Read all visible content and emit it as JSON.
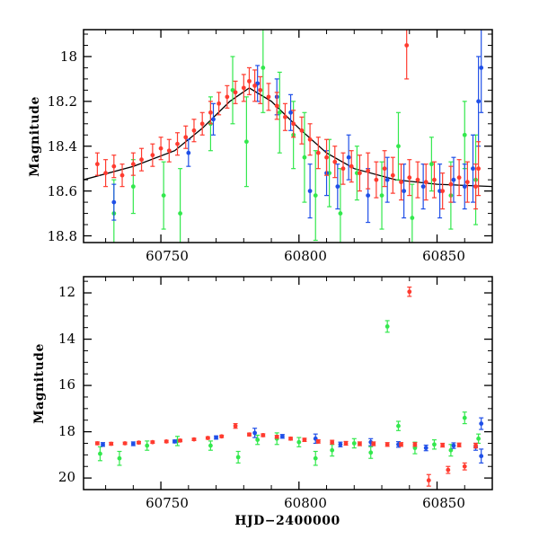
{
  "colors": {
    "red": "#ff3b2f",
    "green": "#33e84d",
    "blue": "#1f4fe8",
    "fit": "#000000"
  },
  "chart_data": [
    {
      "type": "scatter",
      "panel": "top",
      "xlabel": "",
      "ylabel": "Magnitude",
      "xlim": [
        60722,
        60870
      ],
      "ylim": [
        18.83,
        17.88
      ],
      "y_inverted": true,
      "x_ticks": [
        60750,
        60800,
        60850
      ],
      "x_tick_labels": [
        "60750",
        "60800",
        "60850"
      ],
      "y_ticks": [
        18.0,
        18.2,
        18.4,
        18.6,
        18.8
      ],
      "y_tick_labels": [
        "18",
        "18.2",
        "18.4",
        "18.6",
        "18.8"
      ],
      "fit_curve": {
        "x": [
          60722,
          60740,
          60755,
          60765,
          60775,
          60782,
          60790,
          60800,
          60810,
          60820,
          60835,
          60850,
          60870
        ],
        "y": [
          18.55,
          18.49,
          18.42,
          18.32,
          18.2,
          18.14,
          18.2,
          18.32,
          18.43,
          18.5,
          18.55,
          18.57,
          18.58
        ]
      },
      "series": [
        {
          "color": "red",
          "points": [
            [
              60727,
              18.48,
              0.05
            ],
            [
              60730,
              18.52,
              0.06
            ],
            [
              60733,
              18.49,
              0.05
            ],
            [
              60736,
              18.53,
              0.05
            ],
            [
              60740,
              18.48,
              0.05
            ],
            [
              60743,
              18.46,
              0.05
            ],
            [
              60747,
              18.44,
              0.05
            ],
            [
              60750,
              18.41,
              0.05
            ],
            [
              60753,
              18.42,
              0.05
            ],
            [
              60756,
              18.39,
              0.05
            ],
            [
              60759,
              18.36,
              0.05
            ],
            [
              60762,
              18.33,
              0.05
            ],
            [
              60765,
              18.3,
              0.05
            ],
            [
              60768,
              18.25,
              0.05
            ],
            [
              60771,
              18.21,
              0.05
            ],
            [
              60774,
              18.18,
              0.05
            ],
            [
              60777,
              18.16,
              0.05
            ],
            [
              60780,
              18.14,
              0.06
            ],
            [
              60782,
              18.11,
              0.06
            ],
            [
              60784,
              18.13,
              0.07
            ],
            [
              60786,
              18.15,
              0.06
            ],
            [
              60789,
              18.18,
              0.06
            ],
            [
              60792,
              18.22,
              0.06
            ],
            [
              60795,
              18.27,
              0.06
            ],
            [
              60798,
              18.3,
              0.06
            ],
            [
              60801,
              18.33,
              0.06
            ],
            [
              60804,
              18.37,
              0.07
            ],
            [
              60807,
              18.43,
              0.07
            ],
            [
              60810,
              18.45,
              0.08
            ],
            [
              60813,
              18.47,
              0.07
            ],
            [
              60816,
              18.5,
              0.07
            ],
            [
              60819,
              18.49,
              0.07
            ],
            [
              60822,
              18.52,
              0.08
            ],
            [
              60825,
              18.51,
              0.08
            ],
            [
              60828,
              18.55,
              0.08
            ],
            [
              60831,
              18.5,
              0.08
            ],
            [
              60834,
              18.53,
              0.08
            ],
            [
              60837,
              18.56,
              0.08
            ],
            [
              60840,
              18.54,
              0.08
            ],
            [
              60843,
              18.55,
              0.08
            ],
            [
              60846,
              18.56,
              0.08
            ],
            [
              60849,
              18.55,
              0.08
            ],
            [
              60852,
              18.6,
              0.08
            ],
            [
              60855,
              18.57,
              0.08
            ],
            [
              60858,
              18.54,
              0.08
            ],
            [
              60861,
              18.56,
              0.09
            ],
            [
              60864,
              18.58,
              0.1
            ],
            [
              60865,
              18.5,
              0.12
            ],
            [
              60839,
              17.95,
              0.15
            ]
          ]
        },
        {
          "color": "green",
          "points": [
            [
              60733,
              18.7,
              0.15
            ],
            [
              60740,
              18.58,
              0.12
            ],
            [
              60751,
              18.62,
              0.15
            ],
            [
              60757,
              18.7,
              0.2
            ],
            [
              60768,
              18.3,
              0.12
            ],
            [
              60776,
              18.15,
              0.15
            ],
            [
              60781,
              18.38,
              0.2
            ],
            [
              60787,
              18.05,
              0.2
            ],
            [
              60793,
              18.25,
              0.18
            ],
            [
              60798,
              18.35,
              0.15
            ],
            [
              60802,
              18.45,
              0.2
            ],
            [
              60806,
              18.62,
              0.2
            ],
            [
              60811,
              18.52,
              0.15
            ],
            [
              60815,
              18.7,
              0.2
            ],
            [
              60821,
              18.52,
              0.12
            ],
            [
              60830,
              18.62,
              0.15
            ],
            [
              60836,
              18.4,
              0.15
            ],
            [
              60841,
              18.72,
              0.15
            ],
            [
              60848,
              18.48,
              0.12
            ],
            [
              60855,
              18.62,
              0.15
            ],
            [
              60860,
              18.35,
              0.15
            ],
            [
              60864,
              18.55,
              0.2
            ]
          ]
        },
        {
          "color": "blue",
          "points": [
            [
              60733,
              18.65,
              0.08
            ],
            [
              60760,
              18.43,
              0.06
            ],
            [
              60769,
              18.28,
              0.07
            ],
            [
              60785,
              18.12,
              0.08
            ],
            [
              60792,
              18.18,
              0.08
            ],
            [
              60797,
              18.25,
              0.08
            ],
            [
              60804,
              18.6,
              0.12
            ],
            [
              60810,
              18.52,
              0.1
            ],
            [
              60814,
              18.58,
              0.1
            ],
            [
              60818,
              18.45,
              0.1
            ],
            [
              60825,
              18.62,
              0.12
            ],
            [
              60832,
              18.55,
              0.1
            ],
            [
              60838,
              18.6,
              0.12
            ],
            [
              60845,
              18.58,
              0.1
            ],
            [
              60851,
              18.6,
              0.12
            ],
            [
              60856,
              18.55,
              0.1
            ],
            [
              60860,
              18.58,
              0.1
            ],
            [
              60863,
              18.5,
              0.15
            ],
            [
              60865,
              18.2,
              0.2
            ],
            [
              60866,
              18.05,
              0.2
            ]
          ]
        }
      ]
    },
    {
      "type": "scatter",
      "panel": "bottom",
      "xlabel": "HJD−2400000",
      "ylabel": "Magnitude",
      "xlim": [
        60722,
        60870
      ],
      "ylim": [
        20.5,
        11.3
      ],
      "y_inverted": true,
      "x_ticks": [
        60750,
        60800,
        60850
      ],
      "x_tick_labels": [
        "60750",
        "60800",
        "60850"
      ],
      "y_ticks": [
        12,
        14,
        16,
        18,
        20
      ],
      "y_tick_labels": [
        "12",
        "14",
        "16",
        "18",
        "20"
      ],
      "series": [
        {
          "color": "red",
          "points": [
            [
              60727,
              18.5,
              0.06
            ],
            [
              60732,
              18.52,
              0.06
            ],
            [
              60737,
              18.5,
              0.05
            ],
            [
              60742,
              18.47,
              0.05
            ],
            [
              60747,
              18.45,
              0.05
            ],
            [
              60752,
              18.42,
              0.05
            ],
            [
              60757,
              18.38,
              0.05
            ],
            [
              60762,
              18.33,
              0.05
            ],
            [
              60767,
              18.27,
              0.05
            ],
            [
              60772,
              18.2,
              0.05
            ],
            [
              60777,
              17.75,
              0.1
            ],
            [
              60782,
              18.12,
              0.06
            ],
            [
              60787,
              18.15,
              0.06
            ],
            [
              60792,
              18.22,
              0.06
            ],
            [
              60797,
              18.3,
              0.06
            ],
            [
              60802,
              18.35,
              0.07
            ],
            [
              60807,
              18.42,
              0.07
            ],
            [
              60812,
              18.45,
              0.08
            ],
            [
              60817,
              18.5,
              0.08
            ],
            [
              60822,
              18.52,
              0.08
            ],
            [
              60827,
              18.52,
              0.08
            ],
            [
              60832,
              18.55,
              0.08
            ],
            [
              60837,
              18.55,
              0.08
            ],
            [
              60840,
              11.95,
              0.2
            ],
            [
              60842,
              18.55,
              0.08
            ],
            [
              60847,
              20.1,
              0.25
            ],
            [
              60852,
              18.58,
              0.08
            ],
            [
              60854,
              19.65,
              0.15
            ],
            [
              60858,
              18.57,
              0.08
            ],
            [
              60860,
              19.5,
              0.15
            ],
            [
              60864,
              18.6,
              0.1
            ]
          ]
        },
        {
          "color": "green",
          "points": [
            [
              60728,
              18.95,
              0.3
            ],
            [
              60735,
              19.15,
              0.3
            ],
            [
              60745,
              18.6,
              0.2
            ],
            [
              60756,
              18.4,
              0.2
            ],
            [
              60768,
              18.6,
              0.2
            ],
            [
              60778,
              19.1,
              0.25
            ],
            [
              60785,
              18.35,
              0.2
            ],
            [
              60792,
              18.3,
              0.25
            ],
            [
              60800,
              18.45,
              0.2
            ],
            [
              60806,
              19.15,
              0.3
            ],
            [
              60812,
              18.8,
              0.25
            ],
            [
              60820,
              18.5,
              0.2
            ],
            [
              60826,
              18.9,
              0.25
            ],
            [
              60832,
              13.45,
              0.25
            ],
            [
              60836,
              17.75,
              0.2
            ],
            [
              60842,
              18.7,
              0.25
            ],
            [
              60849,
              18.55,
              0.2
            ],
            [
              60855,
              18.8,
              0.25
            ],
            [
              60860,
              17.4,
              0.25
            ],
            [
              60865,
              18.3,
              0.2
            ]
          ]
        },
        {
          "color": "blue",
          "points": [
            [
              60729,
              18.55,
              0.08
            ],
            [
              60740,
              18.52,
              0.08
            ],
            [
              60755,
              18.42,
              0.06
            ],
            [
              60770,
              18.25,
              0.07
            ],
            [
              60784,
              18.05,
              0.2
            ],
            [
              60794,
              18.2,
              0.08
            ],
            [
              60806,
              18.3,
              0.2
            ],
            [
              60815,
              18.55,
              0.1
            ],
            [
              60826,
              18.45,
              0.15
            ],
            [
              60836,
              18.55,
              0.12
            ],
            [
              60846,
              18.7,
              0.12
            ],
            [
              60856,
              18.6,
              0.12
            ],
            [
              60864,
              18.65,
              0.15
            ],
            [
              60866,
              17.65,
              0.25
            ],
            [
              60866,
              19.05,
              0.3
            ]
          ]
        }
      ]
    }
  ]
}
